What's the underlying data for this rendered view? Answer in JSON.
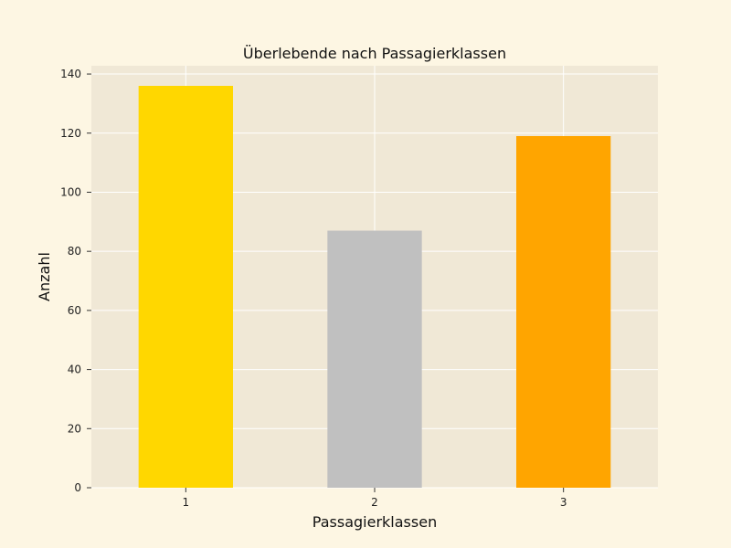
{
  "chart_data": {
    "type": "bar",
    "title": "Überlebende nach Passagierklassen",
    "xlabel": "Passagierklassen",
    "ylabel": "Anzahl",
    "categories": [
      "1",
      "2",
      "3"
    ],
    "values": [
      136,
      87,
      119
    ],
    "colors": [
      "#ffd700",
      "#c0c0c0",
      "#ffa500"
    ],
    "ylim": [
      0,
      142.8
    ],
    "yticks": [
      0,
      20,
      40,
      60,
      80,
      100,
      120,
      140
    ],
    "grid": true,
    "legend": "none"
  },
  "style": {
    "page_background": "#fdf6e3",
    "plot_background": "#f0e8d6",
    "grid_color": "#ffffff"
  }
}
